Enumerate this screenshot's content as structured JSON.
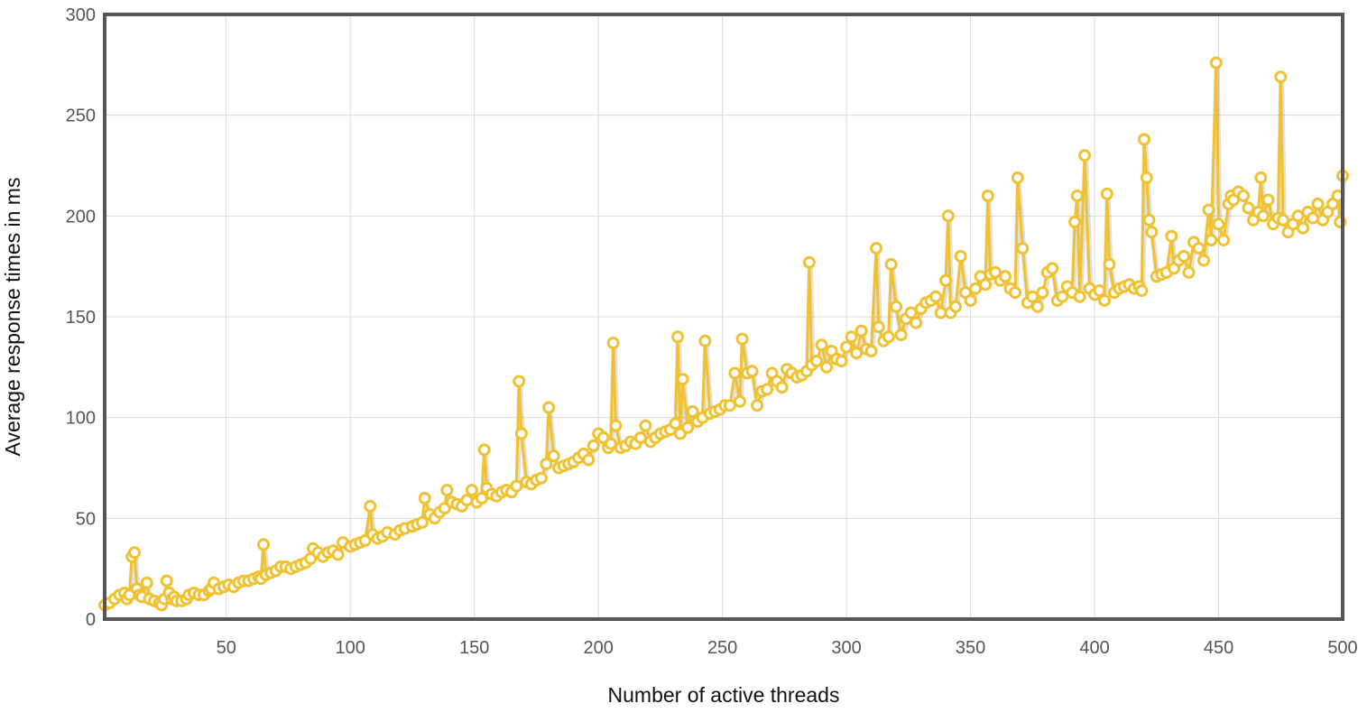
{
  "chart_data": {
    "type": "line",
    "xlabel": "Number of active threads",
    "ylabel": "Average response times in ms",
    "xlim": [
      1,
      500
    ],
    "ylim": [
      0,
      300
    ],
    "x_ticks": [
      50,
      100,
      150,
      200,
      250,
      300,
      350,
      400,
      450,
      500
    ],
    "y_ticks": [
      0,
      50,
      100,
      150,
      200,
      250,
      300
    ],
    "grid": true,
    "legend": "none",
    "colors": {
      "series": "#f0c232",
      "highlight": "#a9d6e8",
      "border": "#555555",
      "grid": "#d9d9d9"
    },
    "highlight_point": {
      "x": 295,
      "y": 127
    },
    "series": [
      {
        "points": [
          [
            1,
            7
          ],
          [
            3,
            8
          ],
          [
            5,
            10
          ],
          [
            7,
            12
          ],
          [
            9,
            13
          ],
          [
            10,
            10
          ],
          [
            11,
            12
          ],
          [
            12,
            31
          ],
          [
            13,
            33
          ],
          [
            14,
            15
          ],
          [
            15,
            12
          ],
          [
            16,
            11
          ],
          [
            18,
            18
          ],
          [
            19,
            10
          ],
          [
            21,
            9
          ],
          [
            23,
            8
          ],
          [
            24,
            7
          ],
          [
            25,
            10
          ],
          [
            26,
            19
          ],
          [
            27,
            13
          ],
          [
            28,
            10
          ],
          [
            29,
            11
          ],
          [
            30,
            9
          ],
          [
            32,
            9
          ],
          [
            34,
            10
          ],
          [
            35,
            12
          ],
          [
            37,
            13
          ],
          [
            39,
            12
          ],
          [
            41,
            12
          ],
          [
            43,
            14
          ],
          [
            44,
            15
          ],
          [
            45,
            18
          ],
          [
            47,
            15
          ],
          [
            49,
            16
          ],
          [
            51,
            17
          ],
          [
            53,
            16
          ],
          [
            55,
            18
          ],
          [
            57,
            19
          ],
          [
            59,
            19
          ],
          [
            61,
            20
          ],
          [
            63,
            21
          ],
          [
            64,
            20
          ],
          [
            65,
            37
          ],
          [
            66,
            22
          ],
          [
            68,
            23
          ],
          [
            70,
            24
          ],
          [
            72,
            26
          ],
          [
            74,
            26
          ],
          [
            76,
            25
          ],
          [
            78,
            26
          ],
          [
            80,
            27
          ],
          [
            82,
            28
          ],
          [
            84,
            30
          ],
          [
            85,
            35
          ],
          [
            87,
            33
          ],
          [
            89,
            31
          ],
          [
            91,
            33
          ],
          [
            93,
            34
          ],
          [
            95,
            32
          ],
          [
            97,
            38
          ],
          [
            100,
            36
          ],
          [
            102,
            37
          ],
          [
            104,
            38
          ],
          [
            106,
            39
          ],
          [
            108,
            56
          ],
          [
            109,
            42
          ],
          [
            111,
            40
          ],
          [
            113,
            41
          ],
          [
            115,
            43
          ],
          [
            118,
            42
          ],
          [
            120,
            44
          ],
          [
            122,
            45
          ],
          [
            125,
            46
          ],
          [
            127,
            47
          ],
          [
            129,
            48
          ],
          [
            130,
            60
          ],
          [
            132,
            52
          ],
          [
            134,
            50
          ],
          [
            136,
            53
          ],
          [
            138,
            55
          ],
          [
            139,
            64
          ],
          [
            141,
            58
          ],
          [
            143,
            57
          ],
          [
            145,
            56
          ],
          [
            147,
            59
          ],
          [
            149,
            64
          ],
          [
            151,
            58
          ],
          [
            153,
            60
          ],
          [
            154,
            84
          ],
          [
            155,
            65
          ],
          [
            157,
            62
          ],
          [
            159,
            61
          ],
          [
            161,
            63
          ],
          [
            163,
            64
          ],
          [
            165,
            63
          ],
          [
            167,
            66
          ],
          [
            168,
            118
          ],
          [
            169,
            92
          ],
          [
            171,
            68
          ],
          [
            173,
            67
          ],
          [
            175,
            69
          ],
          [
            177,
            70
          ],
          [
            179,
            77
          ],
          [
            180,
            105
          ],
          [
            182,
            81
          ],
          [
            184,
            75
          ],
          [
            186,
            76
          ],
          [
            188,
            77
          ],
          [
            190,
            78
          ],
          [
            192,
            80
          ],
          [
            194,
            82
          ],
          [
            196,
            79
          ],
          [
            198,
            86
          ],
          [
            200,
            92
          ],
          [
            202,
            90
          ],
          [
            204,
            85
          ],
          [
            205,
            87
          ],
          [
            206,
            137
          ],
          [
            207,
            96
          ],
          [
            209,
            85
          ],
          [
            211,
            86
          ],
          [
            213,
            88
          ],
          [
            215,
            87
          ],
          [
            217,
            90
          ],
          [
            219,
            96
          ],
          [
            221,
            88
          ],
          [
            223,
            90
          ],
          [
            225,
            92
          ],
          [
            227,
            93
          ],
          [
            229,
            94
          ],
          [
            231,
            97
          ],
          [
            232,
            140
          ],
          [
            233,
            92
          ],
          [
            234,
            119
          ],
          [
            236,
            95
          ],
          [
            238,
            103
          ],
          [
            240,
            98
          ],
          [
            242,
            100
          ],
          [
            243,
            138
          ],
          [
            245,
            102
          ],
          [
            247,
            103
          ],
          [
            249,
            104
          ],
          [
            251,
            106
          ],
          [
            253,
            106
          ],
          [
            255,
            122
          ],
          [
            257,
            108
          ],
          [
            258,
            139
          ],
          [
            260,
            122
          ],
          [
            262,
            123
          ],
          [
            264,
            106
          ],
          [
            266,
            113
          ],
          [
            268,
            114
          ],
          [
            270,
            122
          ],
          [
            272,
            118
          ],
          [
            274,
            115
          ],
          [
            276,
            124
          ],
          [
            278,
            122
          ],
          [
            280,
            120
          ],
          [
            282,
            121
          ],
          [
            284,
            123
          ],
          [
            285,
            177
          ],
          [
            286,
            126
          ],
          [
            288,
            128
          ],
          [
            290,
            136
          ],
          [
            292,
            125
          ],
          [
            294,
            133
          ],
          [
            296,
            129
          ],
          [
            298,
            128
          ],
          [
            300,
            135
          ],
          [
            302,
            140
          ],
          [
            304,
            132
          ],
          [
            306,
            143
          ],
          [
            308,
            134
          ],
          [
            310,
            133
          ],
          [
            312,
            184
          ],
          [
            313,
            145
          ],
          [
            315,
            138
          ],
          [
            317,
            140
          ],
          [
            318,
            176
          ],
          [
            320,
            155
          ],
          [
            322,
            141
          ],
          [
            324,
            149
          ],
          [
            326,
            152
          ],
          [
            328,
            147
          ],
          [
            330,
            154
          ],
          [
            332,
            157
          ],
          [
            334,
            158
          ],
          [
            336,
            160
          ],
          [
            338,
            152
          ],
          [
            340,
            168
          ],
          [
            341,
            200
          ],
          [
            342,
            152
          ],
          [
            344,
            155
          ],
          [
            346,
            180
          ],
          [
            348,
            162
          ],
          [
            350,
            158
          ],
          [
            352,
            164
          ],
          [
            354,
            170
          ],
          [
            356,
            166
          ],
          [
            357,
            210
          ],
          [
            358,
            171
          ],
          [
            360,
            172
          ],
          [
            362,
            168
          ],
          [
            364,
            170
          ],
          [
            366,
            164
          ],
          [
            368,
            162
          ],
          [
            369,
            219
          ],
          [
            371,
            184
          ],
          [
            373,
            157
          ],
          [
            375,
            160
          ],
          [
            377,
            155
          ],
          [
            379,
            162
          ],
          [
            381,
            172
          ],
          [
            383,
            174
          ],
          [
            385,
            158
          ],
          [
            387,
            160
          ],
          [
            389,
            165
          ],
          [
            391,
            162
          ],
          [
            392,
            197
          ],
          [
            393,
            210
          ],
          [
            394,
            160
          ],
          [
            396,
            230
          ],
          [
            398,
            164
          ],
          [
            400,
            161
          ],
          [
            402,
            163
          ],
          [
            404,
            158
          ],
          [
            405,
            211
          ],
          [
            406,
            176
          ],
          [
            408,
            162
          ],
          [
            410,
            164
          ],
          [
            412,
            165
          ],
          [
            414,
            166
          ],
          [
            416,
            164
          ],
          [
            418,
            165
          ],
          [
            419,
            163
          ],
          [
            420,
            238
          ],
          [
            421,
            219
          ],
          [
            422,
            198
          ],
          [
            423,
            192
          ],
          [
            425,
            170
          ],
          [
            427,
            171
          ],
          [
            429,
            172
          ],
          [
            431,
            190
          ],
          [
            432,
            174
          ],
          [
            434,
            178
          ],
          [
            436,
            180
          ],
          [
            438,
            172
          ],
          [
            440,
            187
          ],
          [
            442,
            184
          ],
          [
            444,
            178
          ],
          [
            446,
            203
          ],
          [
            447,
            188
          ],
          [
            449,
            276
          ],
          [
            450,
            196
          ],
          [
            452,
            188
          ],
          [
            454,
            206
          ],
          [
            455,
            210
          ],
          [
            456,
            208
          ],
          [
            458,
            212
          ],
          [
            460,
            210
          ],
          [
            462,
            204
          ],
          [
            464,
            198
          ],
          [
            466,
            202
          ],
          [
            467,
            219
          ],
          [
            468,
            200
          ],
          [
            470,
            208
          ],
          [
            472,
            196
          ],
          [
            474,
            199
          ],
          [
            475,
            269
          ],
          [
            476,
            198
          ],
          [
            478,
            192
          ],
          [
            480,
            196
          ],
          [
            482,
            200
          ],
          [
            484,
            194
          ],
          [
            486,
            202
          ],
          [
            488,
            199
          ],
          [
            490,
            206
          ],
          [
            492,
            198
          ],
          [
            494,
            202
          ],
          [
            496,
            206
          ],
          [
            498,
            210
          ],
          [
            499,
            197
          ],
          [
            500,
            220
          ]
        ]
      }
    ]
  }
}
